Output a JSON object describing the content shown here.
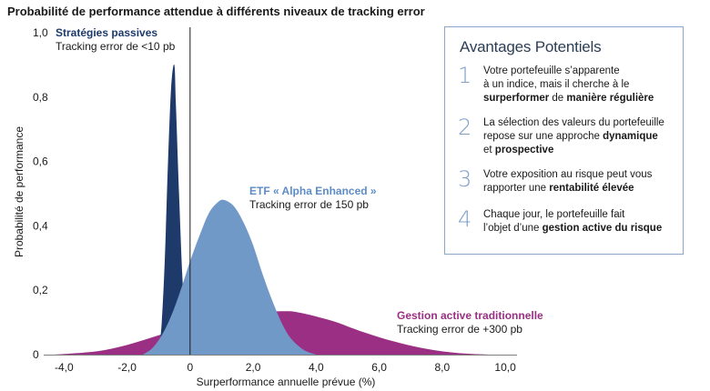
{
  "chart_data": {
    "type": "area",
    "title": "Probabilité de performance attendue à différents niveaux de tracking error",
    "xlabel": "Surperformance annuelle prévue (%)",
    "ylabel": "Probabilité de performance",
    "xlim": [
      -4.5,
      10.2
    ],
    "ylim": [
      0,
      1.0
    ],
    "x_ticks": [
      -4,
      -2,
      0,
      2,
      4,
      6,
      8,
      10
    ],
    "x_tick_labels": [
      "-4,0",
      "-2,0",
      "0",
      "2,0",
      "4,0",
      "6,0",
      "8,0",
      "10,0"
    ],
    "y_ticks": [
      0,
      0.2,
      0.4,
      0.6,
      0.8,
      1.0
    ],
    "y_tick_labels": [
      "0",
      "0,2",
      "0,4",
      "0,6",
      "0,8",
      "1,0"
    ],
    "series": [
      {
        "name": "Gestion active traditionnelle",
        "subtitle": "Tracking error de +300 pb",
        "color": "#9a2f83",
        "points": [
          [
            -4.3,
            0
          ],
          [
            -3,
            0.01
          ],
          [
            -2,
            0.03
          ],
          [
            -1,
            0.06
          ],
          [
            0,
            0.09
          ],
          [
            1,
            0.11
          ],
          [
            2,
            0.13
          ],
          [
            3,
            0.135
          ],
          [
            3.5,
            0.13
          ],
          [
            4.5,
            0.105
          ],
          [
            5.5,
            0.07
          ],
          [
            6.5,
            0.04
          ],
          [
            7.5,
            0.018
          ],
          [
            8.5,
            0.005
          ],
          [
            9.5,
            0
          ]
        ]
      },
      {
        "name": "Stratégies passives",
        "subtitle": "Tracking error de <10 pb",
        "color": "#1d3a6b",
        "points": [
          [
            -1.0,
            0
          ],
          [
            -0.9,
            0.1
          ],
          [
            -0.8,
            0.3
          ],
          [
            -0.7,
            0.6
          ],
          [
            -0.6,
            0.83
          ],
          [
            -0.5,
            0.9
          ],
          [
            -0.45,
            0.78
          ],
          [
            -0.35,
            0.5
          ],
          [
            -0.25,
            0.25
          ],
          [
            -0.15,
            0.1
          ],
          [
            -0.05,
            0
          ]
        ]
      },
      {
        "name": "ETF « Alpha Enhanced »",
        "subtitle": "Tracking error de 150 pb",
        "color": "#7099c8",
        "points": [
          [
            -1.5,
            0
          ],
          [
            -1.2,
            0.02
          ],
          [
            -0.9,
            0.06
          ],
          [
            -0.6,
            0.12
          ],
          [
            -0.3,
            0.2
          ],
          [
            0,
            0.29
          ],
          [
            0.3,
            0.37
          ],
          [
            0.6,
            0.44
          ],
          [
            0.9,
            0.475
          ],
          [
            1.1,
            0.48
          ],
          [
            1.4,
            0.46
          ],
          [
            1.7,
            0.41
          ],
          [
            2.0,
            0.34
          ],
          [
            2.3,
            0.25
          ],
          [
            2.6,
            0.17
          ],
          [
            2.9,
            0.1
          ],
          [
            3.2,
            0.05
          ],
          [
            3.6,
            0.015
          ],
          [
            4.0,
            0
          ]
        ]
      }
    ],
    "reference_line_x": 0
  },
  "advantages": {
    "title": "Avantages Potentiels",
    "items": [
      {
        "num": "1",
        "lines": [
          [
            {
              "t": "Votre portefeuille s’apparente",
              "b": false
            }
          ],
          [
            {
              "t": "à  un indice, mais il cherche à le",
              "b": false
            }
          ],
          [
            {
              "t": "surperformer",
              "b": true
            },
            {
              "t": " de ",
              "b": false
            },
            {
              "t": "manière régulière",
              "b": true
            }
          ]
        ]
      },
      {
        "num": "2",
        "lines": [
          [
            {
              "t": "La sélection des valeurs du portefeuille",
              "b": false
            }
          ],
          [
            {
              "t": "repose sur une approche ",
              "b": false
            },
            {
              "t": "dynamique",
              "b": true
            }
          ],
          [
            {
              "t": "et ",
              "b": false
            },
            {
              "t": "prospective",
              "b": true
            }
          ]
        ]
      },
      {
        "num": "3",
        "lines": [
          [
            {
              "t": "Votre exposition au risque peut vous",
              "b": false
            }
          ],
          [
            {
              "t": "rapporter une ",
              "b": false
            },
            {
              "t": "rentabilité élevée",
              "b": true
            }
          ]
        ]
      },
      {
        "num": "4",
        "lines": [
          [
            {
              "t": "Chaque jour, le portefeuille fait",
              "b": false
            }
          ],
          [
            {
              "t": "l’objet d’une ",
              "b": false
            },
            {
              "t": "gestion active du risque",
              "b": true
            }
          ]
        ]
      }
    ]
  }
}
